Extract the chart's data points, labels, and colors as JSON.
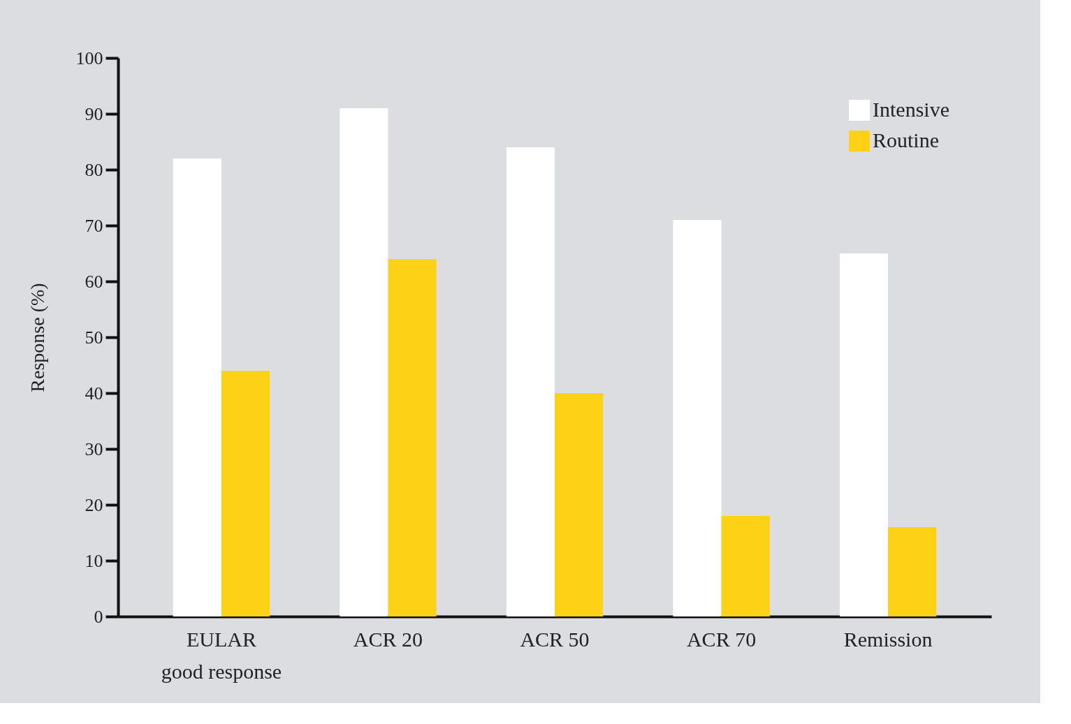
{
  "chart_data": {
    "type": "bar",
    "ylabel": "Response (%)",
    "categories": [
      "EULAR\ngood response",
      "ACR 20",
      "ACR 50",
      "ACR 70",
      "Remission"
    ],
    "series": [
      {
        "name": "Intensive",
        "color": "#ffffff",
        "values": [
          82,
          91,
          84,
          71,
          65
        ]
      },
      {
        "name": "Routine",
        "color": "#fdd116",
        "values": [
          44,
          64,
          40,
          18,
          16
        ]
      }
    ],
    "ylim": [
      0,
      100
    ],
    "yticks": [
      0,
      10,
      20,
      30,
      40,
      50,
      60,
      70,
      80,
      90,
      100
    ],
    "legend": "top right"
  }
}
